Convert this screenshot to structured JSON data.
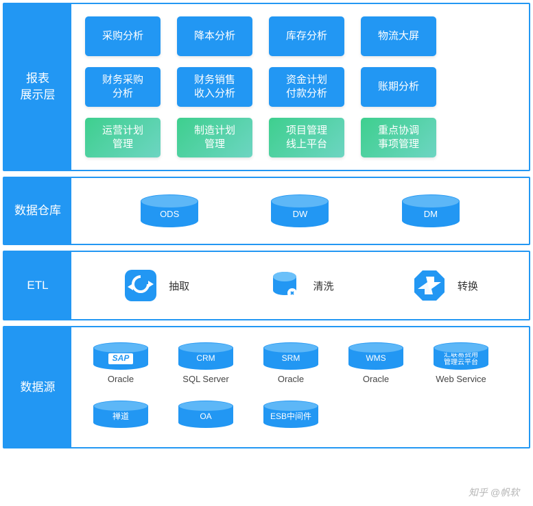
{
  "colors": {
    "blue_primary": "#2297f3",
    "blue_border": "#2297f3",
    "blue_cyl_top": "#5db7f7",
    "green_grad_start": "#3ecf8e",
    "green_grad_end": "#6dd5c2",
    "gray_text": "#444444",
    "white": "#ffffff"
  },
  "layers": {
    "presentation": {
      "label": "报表\n展示层",
      "border_color": "#2297f3",
      "rows": [
        {
          "style": "blue",
          "cards": [
            "采购分析",
            "降本分析",
            "库存分析",
            "物流大屏"
          ]
        },
        {
          "style": "blue",
          "cards": [
            "财务采购\n分析",
            "财务销售\n收入分析",
            "资金计划\n付款分析",
            "账期分析"
          ]
        },
        {
          "style": "green",
          "cards": [
            "运营计划\n管理",
            "制造计划\n管理",
            "项目管理\n线上平台",
            "重点协调\n事项管理"
          ]
        }
      ]
    },
    "warehouse": {
      "label": "数据仓库",
      "border_color": "#2297f3",
      "items": [
        "ODS",
        "DW",
        "DM"
      ]
    },
    "etl": {
      "label": "ETL",
      "border_color": "#2297f3",
      "items": [
        {
          "icon": "refresh",
          "label": "抽取"
        },
        {
          "icon": "clean",
          "label": "清洗"
        },
        {
          "icon": "transform",
          "label": "转换"
        }
      ]
    },
    "source": {
      "label": "数据源",
      "border_color": "#2297f3",
      "row1": [
        {
          "cyl_text": "SAP",
          "cyl_sap": true,
          "label": "Oracle"
        },
        {
          "cyl_text": "CRM",
          "label": "SQL Server"
        },
        {
          "cyl_text": "SRM",
          "label": "Oracle"
        },
        {
          "cyl_text": "WMS",
          "label": "Oracle"
        },
        {
          "cyl_text": "汇联易费用\n管理云平台",
          "small": true,
          "label": "Web Service"
        }
      ],
      "row2": [
        {
          "cyl_text": "禅道",
          "label": ""
        },
        {
          "cyl_text": "OA",
          "label": ""
        },
        {
          "cyl_text": "ESB中间件",
          "label": ""
        }
      ]
    }
  },
  "watermark": "知乎 @帆软"
}
